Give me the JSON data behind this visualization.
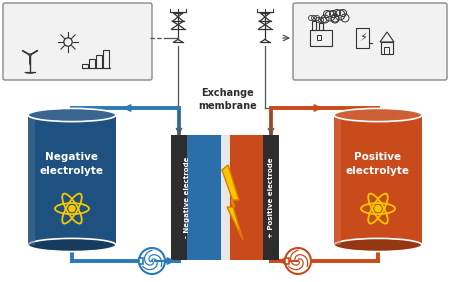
{
  "bg_color": "#ffffff",
  "neg_tank_color": "#1e5080",
  "pos_tank_color": "#c94a1a",
  "neg_elec_fill": "#2a6fa8",
  "pos_elec_fill": "#c94a1a",
  "plate_color": "#2d2d2d",
  "bolt_fill": "#f5c800",
  "bolt_edge": "#e07b00",
  "neg_pipe_color": "#2a7ab8",
  "pos_pipe_color": "#c94a1a",
  "icon_color": "#333333",
  "box_fill": "#f2f2f2",
  "box_edge": "#888888",
  "wire_color": "#555555",
  "atom_color": "#f5c800",
  "membrane_white": "#ffffff",
  "text_white": "#ffffff",
  "text_dark": "#2d2d2d",
  "neg_label": "Negative\nelectrolyte",
  "pos_label": "Positive\nelectrolyte",
  "neg_elec_label": "- Negative electrode",
  "pos_elec_label": "+ Positive electrode",
  "exchange_label": "Exchange\nmembrane"
}
